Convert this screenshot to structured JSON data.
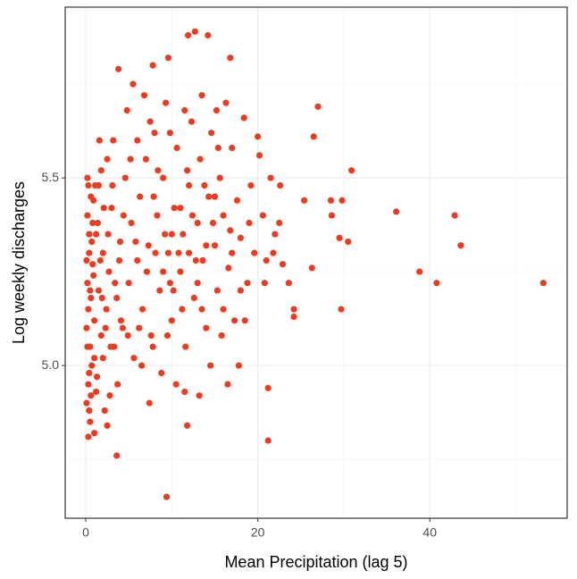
{
  "chart_data": {
    "type": "scatter",
    "x_label": "Mean Precipitation (lag 5)",
    "y_label": "Log weekly discharges",
    "color": "#ee3b1f",
    "grid": true,
    "xlim": [
      -2.39,
      55.97
    ],
    "ylim": [
      4.593,
      5.955
    ],
    "xticks": [
      0,
      20,
      40
    ],
    "yticks": [
      {
        "value": 5,
        "label": "5.0"
      },
      5.5
    ],
    "x_minor_grid": [
      10,
      30,
      50
    ],
    "y_minor_grid": [
      4.75,
      5.25,
      5.75
    ],
    "x": [
      53.2,
      43.6,
      42.9,
      40.8,
      38.8,
      36.1,
      30.9,
      29.7,
      29.8,
      30.5,
      29.5,
      28.5,
      28.6,
      27.0,
      26.5,
      26.3,
      25.4,
      23.6,
      24.2,
      24.2,
      22.9,
      21.2,
      21.2,
      9.4,
      3.6,
      12.7,
      11.9,
      14.2,
      16.8,
      9.6,
      3.8,
      7.8,
      20.0,
      22.6,
      11.8,
      0.3,
      0.1,
      0.2,
      0.3,
      0.4,
      0.5,
      0.2,
      0.6,
      0.1,
      0.8,
      0.3,
      1.0,
      1.2,
      0.7,
      1.5,
      0.9,
      1.8,
      2.0,
      1.3,
      2.4,
      0.4,
      2.7,
      3.0,
      1.6,
      2.2,
      3.3,
      3.6,
      0.5,
      4.0,
      4.3,
      2.8,
      4.6,
      5.0,
      5.3,
      1.1,
      5.6,
      6.0,
      6.3,
      6.6,
      7.0,
      7.3,
      7.6,
      8.0,
      8.3,
      8.6,
      9.0,
      9.3,
      9.6,
      10.0,
      10.3,
      10.6,
      11.0,
      11.3,
      11.6,
      12.0,
      12.3,
      12.6,
      13.0,
      13.3,
      13.6,
      14.0,
      14.3,
      14.6,
      15.0,
      15.3,
      15.6,
      16.0,
      16.3,
      16.6,
      17.0,
      17.3,
      17.6,
      18.0,
      18.4,
      18.8,
      19.2,
      19.6,
      20.2,
      20.6,
      21.0,
      21.5,
      22.0,
      4.8,
      5.5,
      6.8,
      3.2,
      2.5,
      7.8,
      8.8,
      10.5,
      11.5,
      13.2,
      14.5,
      15.8,
      16.5,
      17.8,
      18.5,
      1.4,
      0.6,
      2.1,
      3.9,
      4.4,
      5.8,
      6.2,
      7.1,
      7.9,
      8.4,
      9.2,
      9.8,
      10.8,
      11.8,
      12.4,
      13.8,
      14.8,
      15.4,
      16.8,
      0.3,
      0.7,
      1.0,
      1.7,
      2.3,
      0.2,
      0.4,
      0.9,
      1.9,
      2.6,
      3.4,
      4.1,
      0.1,
      0.5,
      0.8,
      1.2,
      2.9,
      3.7,
      4.9,
      6.5,
      7.4,
      9.5,
      10.2,
      11.2,
      12.8,
      13.5,
      0.2,
      1.5,
      2.0,
      0.6,
      3.1,
      8.1,
      9.0,
      10.0,
      11.0,
      12.0,
      13.0,
      14.0,
      15.0,
      16.0,
      17.0,
      18.0,
      19.0,
      6.0,
      7.5,
      9.8,
      11.5,
      13.5,
      15.2,
      0.4,
      1.0,
      2.5,
      1.8,
      5.2,
      20.8,
      21.8,
      22.5
    ],
    "y": [
      5.22,
      5.32,
      5.4,
      5.22,
      5.25,
      5.41,
      5.52,
      5.15,
      5.44,
      5.33,
      5.34,
      5.44,
      5.4,
      5.69,
      5.61,
      5.26,
      5.44,
      5.22,
      5.15,
      5.13,
      5.27,
      4.8,
      4.94,
      4.65,
      4.76,
      5.89,
      5.88,
      5.88,
      5.82,
      5.82,
      5.79,
      5.8,
      5.61,
      5.48,
      4.84,
      4.81,
      5.1,
      5.22,
      4.95,
      5.3,
      5.05,
      5.4,
      5.18,
      4.9,
      5.27,
      5.48,
      5.12,
      5.35,
      5.0,
      5.2,
      5.44,
      5.08,
      5.3,
      4.97,
      5.15,
      5.35,
      5.25,
      5.42,
      5.6,
      4.88,
      5.05,
      5.18,
      4.85,
      5.33,
      5.1,
      4.92,
      5.5,
      5.22,
      5.38,
      5.48,
      5.02,
      5.28,
      5.45,
      5.15,
      5.55,
      5.32,
      5.08,
      5.62,
      5.4,
      5.2,
      5.5,
      5.7,
      5.3,
      5.12,
      5.42,
      5.58,
      5.25,
      5.35,
      5.05,
      5.48,
      5.65,
      5.18,
      5.38,
      5.55,
      5.28,
      5.1,
      5.45,
      5.62,
      5.32,
      5.2,
      5.5,
      5.4,
      5.7,
      5.26,
      5.58,
      5.12,
      5.44,
      5.34,
      5.66,
      5.22,
      5.48,
      5.3,
      5.56,
      5.4,
      5.28,
      5.5,
      5.35,
      5.68,
      5.75,
      5.72,
      5.6,
      5.55,
      5.05,
      4.98,
      4.95,
      4.93,
      4.92,
      5.0,
      5.08,
      4.95,
      5.0,
      5.12,
      5.38,
      5.45,
      5.42,
      5.28,
      5.4,
      5.33,
      5.1,
      5.25,
      5.45,
      5.52,
      5.35,
      5.22,
      5.3,
      5.52,
      5.4,
      5.48,
      5.38,
      5.58,
      5.36,
      5.15,
      5.33,
      5.02,
      5.28,
      5.1,
      5.05,
      4.98,
      5.24,
      5.18,
      5.35,
      5.22,
      5.12,
      5.28,
      5.2,
      5.38,
      4.93,
      5.05,
      4.95,
      5.08,
      5.0,
      4.9,
      5.08,
      5.2,
      5.15,
      5.28,
      5.15,
      5.5,
      5.48,
      5.02,
      4.92,
      5.48,
      5.3,
      5.25,
      5.35,
      5.42,
      5.3,
      5.22,
      5.32,
      5.45,
      5.15,
      5.3,
      5.2,
      5.38,
      5.6,
      5.65,
      5.62,
      5.68,
      5.72,
      5.68,
      4.88,
      4.82,
      4.84,
      5.52,
      5.55,
      5.22,
      5.3,
      5.38
    ]
  }
}
